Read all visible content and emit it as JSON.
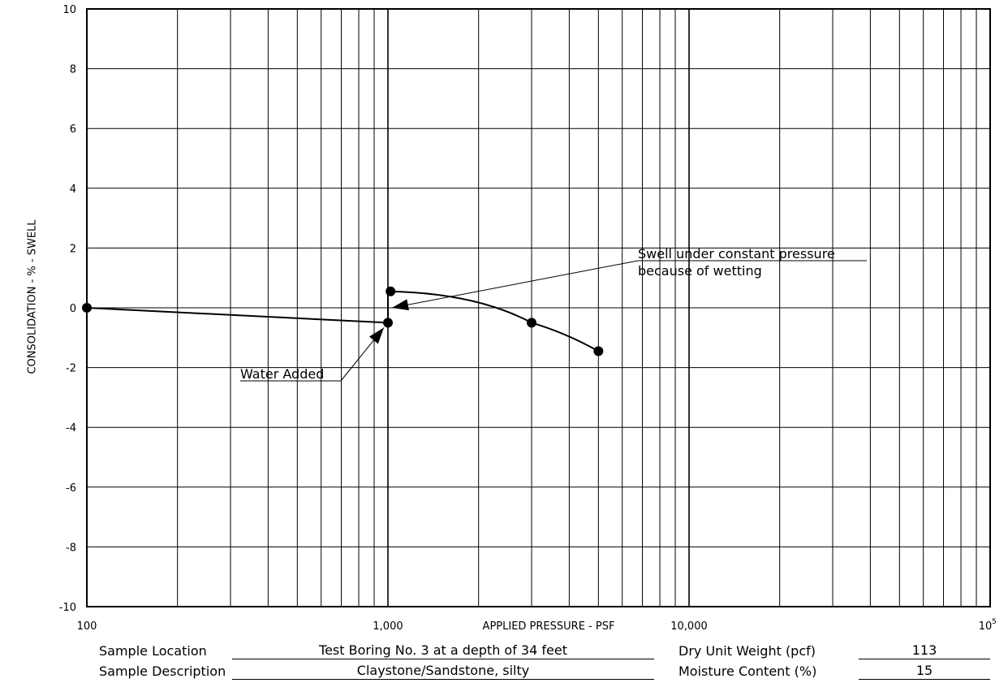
{
  "chart_data": {
    "type": "line",
    "xscale": "log",
    "xlim": [
      100,
      100000
    ],
    "ylim": [
      -10,
      10
    ],
    "xlabel": "APPLIED PRESSURE - PSF",
    "ylabel": "CONSOLIDATION - % - SWELL",
    "y_ticks": [
      "10",
      "8",
      "6",
      "4",
      "2",
      "0",
      "-2",
      "-4",
      "-6",
      "-8",
      "-10"
    ],
    "x_ticks": [
      "100",
      "1,000",
      "10,000",
      "10"
    ],
    "x_tick_exponent": "5",
    "grid": true,
    "series": [
      {
        "x": [
          100,
          1000,
          1000,
          1000,
          3000,
          5000
        ],
        "y": [
          0.0,
          -0.5,
          0.0,
          0.55,
          -0.5,
          -1.45
        ],
        "marker_points": [
          [
            100,
            0.0
          ],
          [
            1000,
            -0.5
          ],
          [
            1020,
            0.55
          ],
          [
            3000,
            -0.5
          ],
          [
            5000,
            -1.45
          ]
        ]
      }
    ],
    "annotations": [
      {
        "lines": [
          "Swell under constant pressure",
          "because of wetting"
        ],
        "arrow_to": [
          1000,
          0.0
        ]
      },
      {
        "lines": [
          "Water Added"
        ],
        "arrow_to": [
          1000,
          -0.5
        ]
      }
    ]
  },
  "sample_info": {
    "location_label": "Sample Location",
    "location_value": "Test Boring No. 3 at a depth of 34 feet",
    "description_label": "Sample Description",
    "description_value": "Claystone/Sandstone, silty",
    "dry_unit_weight_label": "Dry Unit Weight (pcf)",
    "dry_unit_weight_value": "113",
    "moisture_content_label": "Moisture Content (%)",
    "moisture_content_value": "15"
  }
}
